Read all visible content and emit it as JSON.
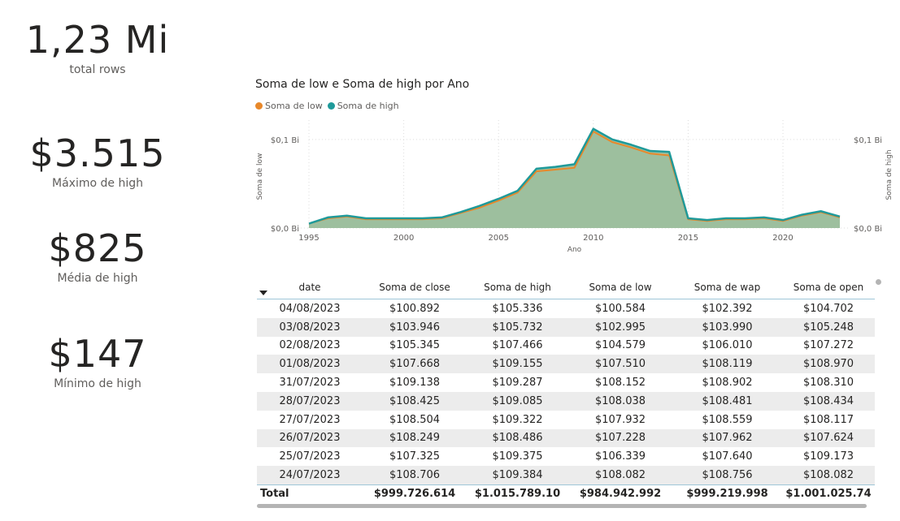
{
  "cards": [
    {
      "value": "1,23 Mi",
      "label": "total rows"
    },
    {
      "value": "$3.515",
      "label": "Máximo de high"
    },
    {
      "value": "$825",
      "label": "Média de high"
    },
    {
      "value": "$147",
      "label": "Mínimo de high"
    }
  ],
  "chart_data": {
    "type": "area",
    "title": "Soma de low e Soma de high por Ano",
    "xlabel": "Ano",
    "ylabel": "Soma de low",
    "ylabel_right": "Soma de high",
    "x": [
      1995,
      1996,
      1997,
      1998,
      1999,
      2000,
      2001,
      2002,
      2003,
      2004,
      2005,
      2006,
      2007,
      2008,
      2009,
      2010,
      2011,
      2012,
      2013,
      2014,
      2015,
      2016,
      2017,
      2018,
      2019,
      2020,
      2021,
      2022,
      2023
    ],
    "x_ticks": [
      "1995",
      "2000",
      "2005",
      "2010",
      "2015",
      "2020"
    ],
    "y_ticks": [
      "$0,0 Bi",
      "$0,1 Bi"
    ],
    "y_ticks_right": [
      "$0,0 Bi",
      "$0,1 Bi"
    ],
    "ylim": [
      0,
      0.12
    ],
    "series": [
      {
        "name": "Soma de low",
        "color": "#e8882a",
        "values": [
          0.005,
          0.011,
          0.013,
          0.01,
          0.01,
          0.01,
          0.01,
          0.011,
          0.017,
          0.023,
          0.031,
          0.04,
          0.064,
          0.066,
          0.068,
          0.109,
          0.097,
          0.091,
          0.084,
          0.082,
          0.01,
          0.008,
          0.01,
          0.01,
          0.011,
          0.008,
          0.014,
          0.018,
          0.012
        ]
      },
      {
        "name": "Soma de high",
        "color": "#1f9a9a",
        "values": [
          0.005,
          0.012,
          0.014,
          0.011,
          0.011,
          0.011,
          0.011,
          0.012,
          0.018,
          0.025,
          0.033,
          0.042,
          0.067,
          0.069,
          0.072,
          0.112,
          0.1,
          0.094,
          0.087,
          0.086,
          0.011,
          0.009,
          0.011,
          0.011,
          0.012,
          0.009,
          0.015,
          0.019,
          0.013
        ]
      }
    ],
    "grid": true,
    "legend_position": "top-left"
  },
  "table": {
    "columns": [
      "date",
      "Soma de close",
      "Soma de high",
      "Soma de low",
      "Soma de wap",
      "Soma de open"
    ],
    "rows": [
      [
        "04/08/2023",
        "$100.892",
        "$105.336",
        "$100.584",
        "$102.392",
        "$104.702"
      ],
      [
        "03/08/2023",
        "$103.946",
        "$105.732",
        "$102.995",
        "$103.990",
        "$105.248"
      ],
      [
        "02/08/2023",
        "$105.345",
        "$107.466",
        "$104.579",
        "$106.010",
        "$107.272"
      ],
      [
        "01/08/2023",
        "$107.668",
        "$109.155",
        "$107.510",
        "$108.119",
        "$108.970"
      ],
      [
        "31/07/2023",
        "$109.138",
        "$109.287",
        "$108.152",
        "$108.902",
        "$108.310"
      ],
      [
        "28/07/2023",
        "$108.425",
        "$109.085",
        "$108.038",
        "$108.481",
        "$108.434"
      ],
      [
        "27/07/2023",
        "$108.504",
        "$109.322",
        "$107.932",
        "$108.559",
        "$108.117"
      ],
      [
        "26/07/2023",
        "$108.249",
        "$108.486",
        "$107.228",
        "$107.962",
        "$107.624"
      ],
      [
        "25/07/2023",
        "$107.325",
        "$109.375",
        "$106.339",
        "$107.640",
        "$109.173"
      ],
      [
        "24/07/2023",
        "$108.706",
        "$109.384",
        "$108.082",
        "$108.756",
        "$108.082"
      ]
    ],
    "total": [
      "Total",
      "$999.726.614",
      "$1.015.789.10",
      "$984.942.992",
      "$999.219.998",
      "$1.001.025.74"
    ]
  }
}
